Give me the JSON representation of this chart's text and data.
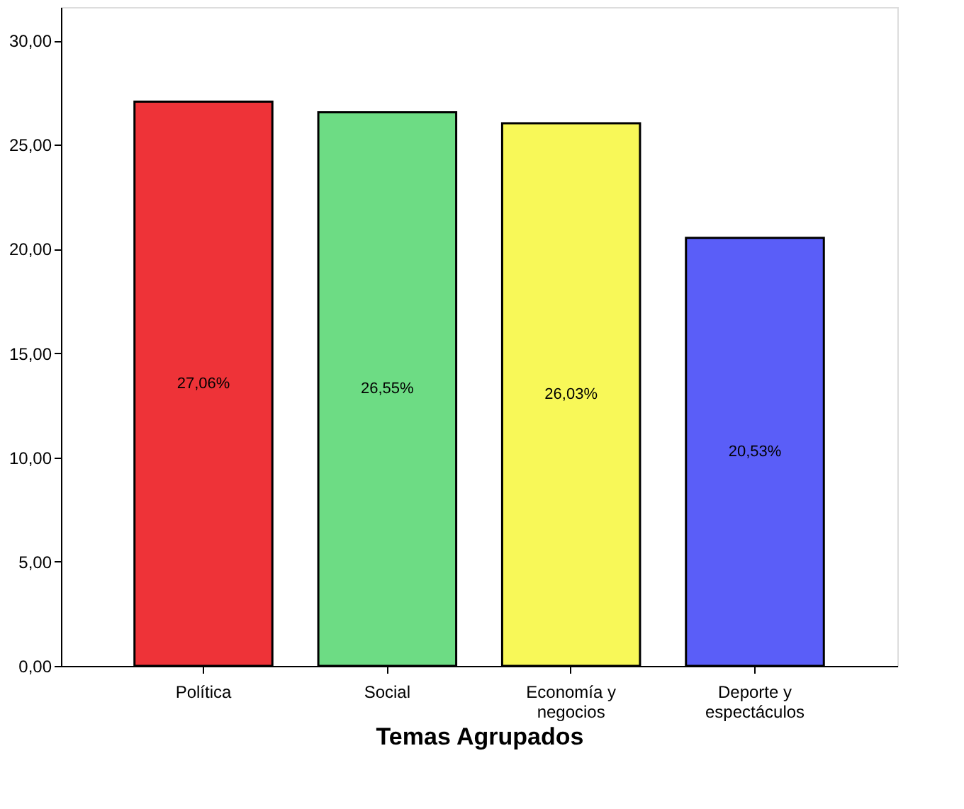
{
  "chart_data": {
    "type": "bar",
    "xlabel": "Temas Agrupados",
    "categories": [
      "Política",
      "Social",
      "Economía y negocios",
      "Deporte y espectáculos"
    ],
    "values": [
      27.06,
      26.55,
      26.03,
      20.53
    ],
    "colors": [
      "#ee3338",
      "#6ddc84",
      "#f8f858",
      "#5a5ef8"
    ],
    "value_labels": [
      "27,06%",
      "26,55%",
      "26,03%",
      "20,53%"
    ],
    "ylim": [
      0,
      31.6
    ],
    "yticks": [
      {
        "value": 0,
        "label": "0,00"
      },
      {
        "value": 5,
        "label": "5,00"
      },
      {
        "value": 10,
        "label": "10,00"
      },
      {
        "value": 15,
        "label": "15,00"
      },
      {
        "value": 20,
        "label": "20,00"
      },
      {
        "value": 25,
        "label": "25,00"
      },
      {
        "value": 30,
        "label": "30,00"
      }
    ],
    "grid": false
  }
}
